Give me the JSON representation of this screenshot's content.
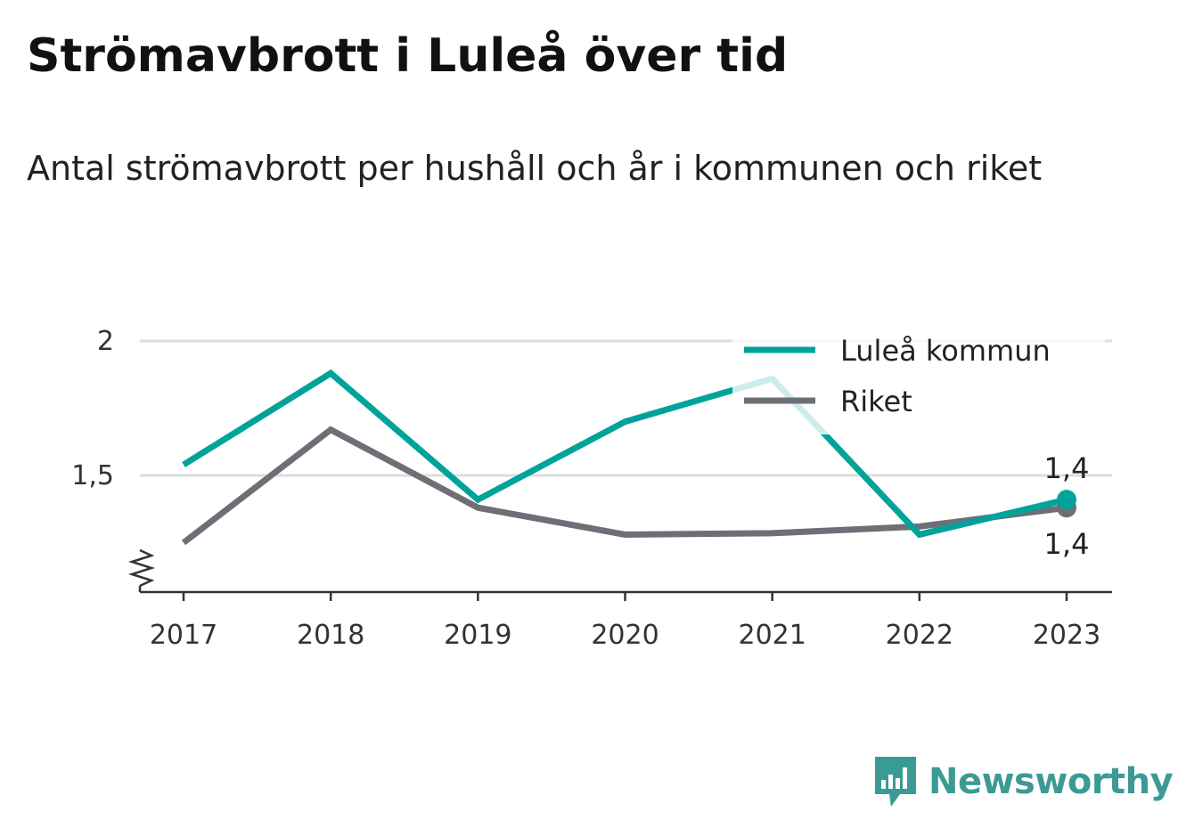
{
  "title": "Strömavbrott i Luleå över tid",
  "subtitle": "Antal strömavbrott per hushåll och år i kommunen och riket",
  "brand": {
    "name": "Newsworthy",
    "color": "#3c9a95"
  },
  "chart_data": {
    "type": "line",
    "title": "Strömavbrott i Luleå över tid",
    "subtitle": "Antal strömavbrott per hushåll och år i kommunen och riket",
    "xlabel": "",
    "ylabel": "",
    "x": [
      "2017",
      "2018",
      "2019",
      "2020",
      "2021",
      "2022",
      "2023"
    ],
    "ylim": [
      1.07,
      2.0
    ],
    "y_axis_break": true,
    "yticks": [
      {
        "value": 1.5,
        "label": "1,5"
      },
      {
        "value": 2.0,
        "label": "2"
      }
    ],
    "grid": true,
    "legend_position": "top-right",
    "series": [
      {
        "name": "Luleå kommun",
        "color": "#00a39a",
        "values": [
          1.54,
          1.88,
          1.41,
          1.7,
          1.86,
          1.28,
          1.41
        ],
        "end_label": "1,4"
      },
      {
        "name": "Riket",
        "color": "#6e6e76",
        "values": [
          1.25,
          1.67,
          1.38,
          1.28,
          1.285,
          1.31,
          1.38
        ],
        "end_label": "1,4"
      }
    ]
  }
}
